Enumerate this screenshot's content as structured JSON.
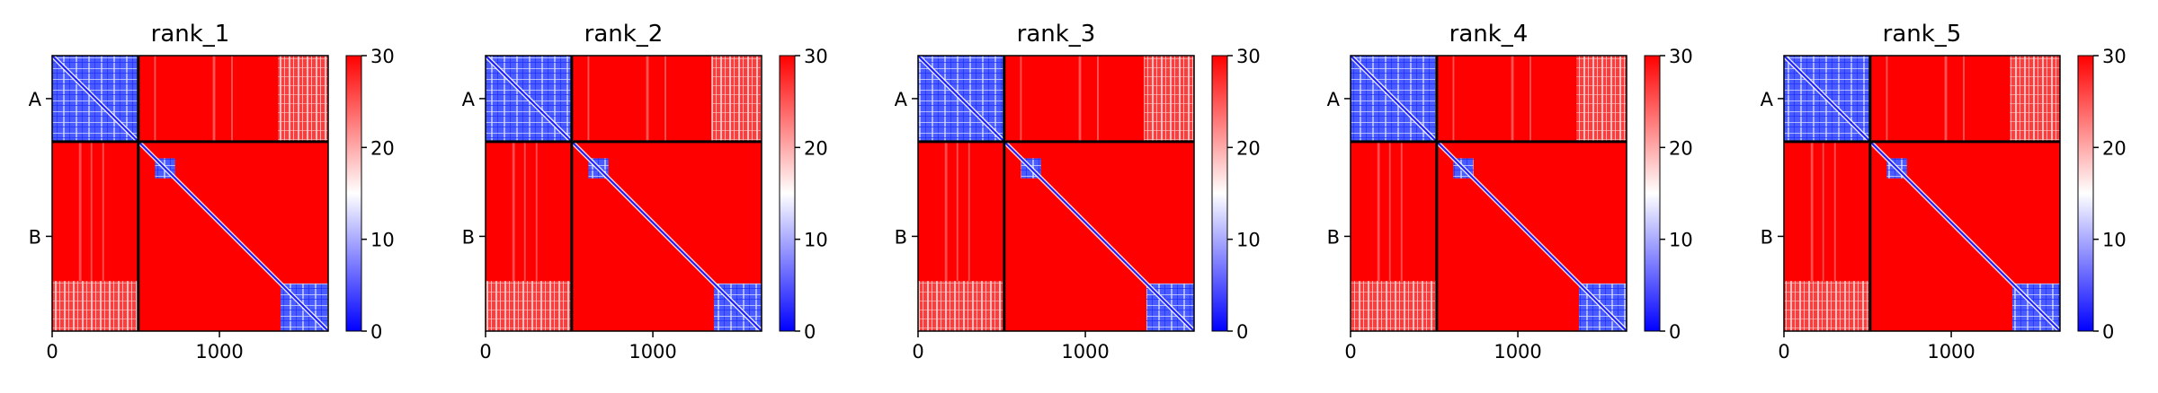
{
  "chart_data": [
    {
      "type": "heatmap",
      "title": "rank_1",
      "xticks": [
        0,
        1000
      ],
      "ytick_labels": [
        "A",
        "B"
      ],
      "xlim": [
        0,
        1650
      ],
      "ylim": [
        0,
        1650
      ],
      "segments": [
        {
          "label": "A",
          "start": 0,
          "end": 515
        },
        {
          "label": "B",
          "start": 515,
          "end": 1650
        }
      ],
      "colorbar": {
        "min": 0,
        "max": 30,
        "ticks": [
          0,
          10,
          20,
          30
        ],
        "colors": [
          "#0000ff",
          "#ffffff",
          "#ff0000"
        ]
      },
      "low_blocks": [
        {
          "x": [
            0,
            515
          ],
          "y": [
            0,
            515
          ]
        },
        {
          "x": [
            615,
            735
          ],
          "y": [
            615,
            735
          ]
        },
        {
          "x": [
            1365,
            1650
          ],
          "y": [
            1365,
            1650
          ]
        }
      ],
      "pale_blocks": [
        {
          "x": [
            1350,
            1650
          ],
          "y": [
            0,
            515
          ]
        },
        {
          "x": [
            0,
            515
          ],
          "y": [
            1350,
            1650
          ]
        }
      ],
      "diagonal": true
    },
    {
      "type": "heatmap",
      "title": "rank_2",
      "xticks": [
        0,
        1000
      ],
      "ytick_labels": [
        "A",
        "B"
      ],
      "xlim": [
        0,
        1650
      ],
      "ylim": [
        0,
        1650
      ],
      "segments": [
        {
          "label": "A",
          "start": 0,
          "end": 515
        },
        {
          "label": "B",
          "start": 515,
          "end": 1650
        }
      ],
      "colorbar": {
        "min": 0,
        "max": 30,
        "ticks": [
          0,
          10,
          20,
          30
        ],
        "colors": [
          "#0000ff",
          "#ffffff",
          "#ff0000"
        ]
      },
      "low_blocks": [
        {
          "x": [
            0,
            515
          ],
          "y": [
            0,
            515
          ]
        },
        {
          "x": [
            615,
            735
          ],
          "y": [
            615,
            735
          ]
        },
        {
          "x": [
            1365,
            1650
          ],
          "y": [
            1365,
            1650
          ]
        }
      ],
      "pale_blocks": [
        {
          "x": [
            1350,
            1650
          ],
          "y": [
            0,
            515
          ]
        },
        {
          "x": [
            0,
            515
          ],
          "y": [
            1350,
            1650
          ]
        }
      ],
      "diagonal": true
    },
    {
      "type": "heatmap",
      "title": "rank_3",
      "xticks": [
        0,
        1000
      ],
      "ytick_labels": [
        "A",
        "B"
      ],
      "xlim": [
        0,
        1650
      ],
      "ylim": [
        0,
        1650
      ],
      "segments": [
        {
          "label": "A",
          "start": 0,
          "end": 515
        },
        {
          "label": "B",
          "start": 515,
          "end": 1650
        }
      ],
      "colorbar": {
        "min": 0,
        "max": 30,
        "ticks": [
          0,
          10,
          20,
          30
        ],
        "colors": [
          "#0000ff",
          "#ffffff",
          "#ff0000"
        ]
      },
      "low_blocks": [
        {
          "x": [
            0,
            515
          ],
          "y": [
            0,
            515
          ]
        },
        {
          "x": [
            615,
            735
          ],
          "y": [
            615,
            735
          ]
        },
        {
          "x": [
            1365,
            1650
          ],
          "y": [
            1365,
            1650
          ]
        }
      ],
      "pale_blocks": [
        {
          "x": [
            1350,
            1650
          ],
          "y": [
            0,
            515
          ]
        },
        {
          "x": [
            0,
            515
          ],
          "y": [
            1350,
            1650
          ]
        }
      ],
      "diagonal": true
    },
    {
      "type": "heatmap",
      "title": "rank_4",
      "xticks": [
        0,
        1000
      ],
      "ytick_labels": [
        "A",
        "B"
      ],
      "xlim": [
        0,
        1650
      ],
      "ylim": [
        0,
        1650
      ],
      "segments": [
        {
          "label": "A",
          "start": 0,
          "end": 515
        },
        {
          "label": "B",
          "start": 515,
          "end": 1650
        }
      ],
      "colorbar": {
        "min": 0,
        "max": 30,
        "ticks": [
          0,
          10,
          20,
          30
        ],
        "colors": [
          "#0000ff",
          "#ffffff",
          "#ff0000"
        ]
      },
      "low_blocks": [
        {
          "x": [
            0,
            515
          ],
          "y": [
            0,
            515
          ]
        },
        {
          "x": [
            615,
            735
          ],
          "y": [
            615,
            735
          ]
        },
        {
          "x": [
            1365,
            1650
          ],
          "y": [
            1365,
            1650
          ]
        }
      ],
      "pale_blocks": [
        {
          "x": [
            1350,
            1650
          ],
          "y": [
            0,
            515
          ]
        },
        {
          "x": [
            0,
            515
          ],
          "y": [
            1350,
            1650
          ]
        }
      ],
      "diagonal": true
    },
    {
      "type": "heatmap",
      "title": "rank_5",
      "xticks": [
        0,
        1000
      ],
      "ytick_labels": [
        "A",
        "B"
      ],
      "xlim": [
        0,
        1650
      ],
      "ylim": [
        0,
        1650
      ],
      "segments": [
        {
          "label": "A",
          "start": 0,
          "end": 515
        },
        {
          "label": "B",
          "start": 515,
          "end": 1650
        }
      ],
      "colorbar": {
        "min": 0,
        "max": 30,
        "ticks": [
          0,
          10,
          20,
          30
        ],
        "colors": [
          "#0000ff",
          "#ffffff",
          "#ff0000"
        ]
      },
      "low_blocks": [
        {
          "x": [
            0,
            515
          ],
          "y": [
            0,
            515
          ]
        },
        {
          "x": [
            615,
            735
          ],
          "y": [
            615,
            735
          ]
        },
        {
          "x": [
            1365,
            1650
          ],
          "y": [
            1365,
            1650
          ]
        }
      ],
      "pale_blocks": [
        {
          "x": [
            1350,
            1650
          ],
          "y": [
            0,
            515
          ]
        },
        {
          "x": [
            0,
            515
          ],
          "y": [
            1350,
            1650
          ]
        }
      ],
      "diagonal": true
    }
  ]
}
